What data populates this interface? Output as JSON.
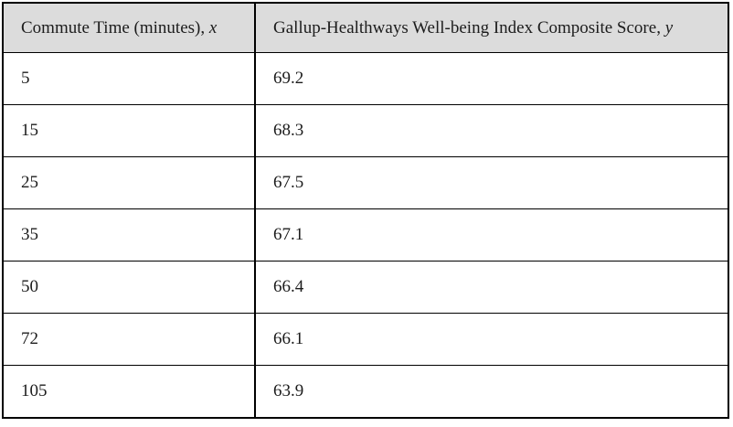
{
  "chart_data": {
    "type": "table",
    "title": "",
    "columns": [
      "Commute Time (minutes), x",
      "Gallup-Healthways Well-being Index Composite Score, y"
    ],
    "x_label": "Commute Time (minutes)",
    "y_label": "Gallup-Healthways Well-being Index Composite Score",
    "x": [
      5,
      15,
      25,
      35,
      50,
      72,
      105
    ],
    "y": [
      69.2,
      68.3,
      67.5,
      67.1,
      66.4,
      66.1,
      63.9
    ],
    "layout": {
      "header_background": "#dcdcdc",
      "border_color": "#000000",
      "text_color": "#1c1c1c",
      "grid": "full-ruled-table"
    }
  },
  "table": {
    "columns": [
      {
        "label": "Commute Time (minutes),",
        "variable": "x"
      },
      {
        "label": "Gallup-Healthways Well-being Index Composite Score,",
        "variable": "y"
      }
    ],
    "rows": [
      {
        "x": "5",
        "y": "69.2"
      },
      {
        "x": "15",
        "y": "68.3"
      },
      {
        "x": "25",
        "y": "67.5"
      },
      {
        "x": "35",
        "y": "67.1"
      },
      {
        "x": "50",
        "y": "66.4"
      },
      {
        "x": "72",
        "y": "66.1"
      },
      {
        "x": "105",
        "y": "63.9"
      }
    ]
  }
}
